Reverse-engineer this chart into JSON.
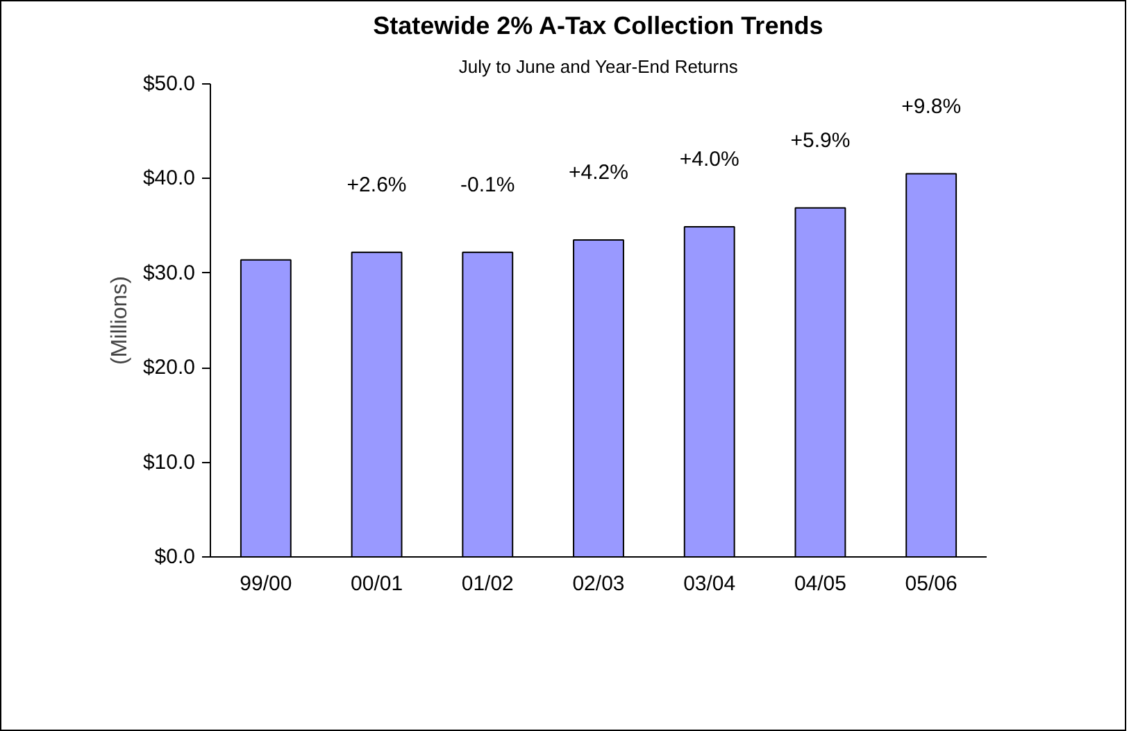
{
  "chart_data": {
    "type": "bar",
    "title": "Statewide 2% A-Tax Collection Trends",
    "subtitle": "July to June and Year-End Returns",
    "ylabel": "(Millions)",
    "categories": [
      "99/00",
      "00/01",
      "01/02",
      "02/03",
      "03/04",
      "04/05",
      "05/06"
    ],
    "values": [
      31.4,
      32.2,
      32.2,
      33.5,
      34.9,
      36.9,
      40.5
    ],
    "color": "#9999ff",
    "ylim": [
      0,
      50
    ],
    "yticks": [
      {
        "value": 0,
        "label": "$0.0"
      },
      {
        "value": 10,
        "label": "$10.0"
      },
      {
        "value": 20,
        "label": "$20.0"
      },
      {
        "value": 30,
        "label": "$30.0"
      },
      {
        "value": 40,
        "label": "$40.0"
      },
      {
        "value": 50,
        "label": "$50.0"
      }
    ],
    "annotations": [
      "+2.6%",
      "-0.1%",
      "+4.2%",
      "+4.0%",
      "+5.9%",
      "+9.8%"
    ],
    "grid": false
  }
}
